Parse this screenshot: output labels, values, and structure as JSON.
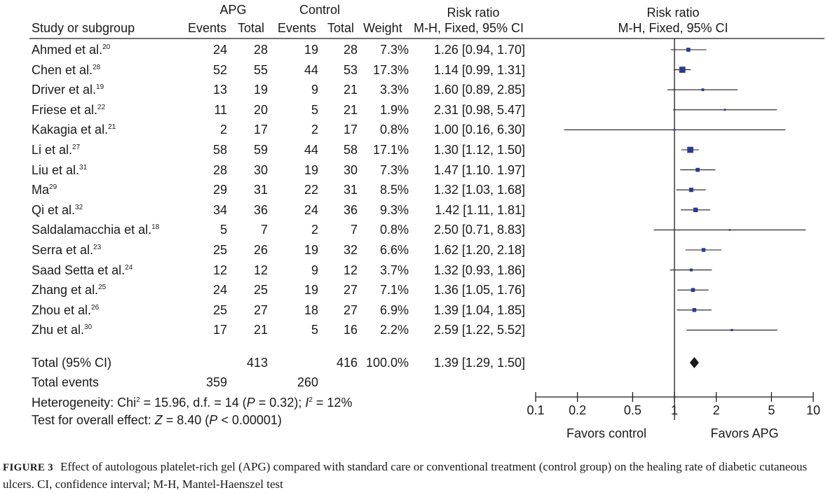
{
  "headers": {
    "apg_group": "APG",
    "control_group": "Control",
    "risk_ratio": "Risk ratio",
    "study": "Study or subgroup",
    "events": "Events",
    "total": "Total",
    "weight": "Weight",
    "method": "M-H, Fixed, 95% CI",
    "plot_title": "Risk ratio",
    "plot_method": "M-H, Fixed, 95% CI"
  },
  "studies": [
    {
      "name": "Ahmed et al.",
      "ref": "20",
      "apg_events": "24",
      "apg_total": "28",
      "ctrl_events": "19",
      "ctrl_total": "28",
      "weight": "7.3%",
      "ci_text": "1.26 [0.94, 1.70]"
    },
    {
      "name": "Chen et al.",
      "ref": "28",
      "apg_events": "52",
      "apg_total": "55",
      "ctrl_events": "44",
      "ctrl_total": "53",
      "weight": "17.3%",
      "ci_text": "1.14 [0.99, 1.31]"
    },
    {
      "name": "Driver et al.",
      "ref": "19",
      "apg_events": "13",
      "apg_total": "19",
      "ctrl_events": "9",
      "ctrl_total": "21",
      "weight": "3.3%",
      "ci_text": "1.60 [0.89, 2.85]"
    },
    {
      "name": "Friese et al.",
      "ref": "22",
      "apg_events": "11",
      "apg_total": "20",
      "ctrl_events": "5",
      "ctrl_total": "21",
      "weight": "1.9%",
      "ci_text": "2.31 [0.98, 5.47]"
    },
    {
      "name": "Kakagia et al.",
      "ref": "21",
      "apg_events": "2",
      "apg_total": "17",
      "ctrl_events": "2",
      "ctrl_total": "17",
      "weight": "0.8%",
      "ci_text": "1.00 [0.16, 6.30]"
    },
    {
      "name": "Li et al.",
      "ref": "27",
      "apg_events": "58",
      "apg_total": "59",
      "ctrl_events": "44",
      "ctrl_total": "58",
      "weight": "17.1%",
      "ci_text": "1.30 [1.12, 1.50]"
    },
    {
      "name": "Liu et al.",
      "ref": "31",
      "apg_events": "28",
      "apg_total": "30",
      "ctrl_events": "19",
      "ctrl_total": "30",
      "weight": "7.3%",
      "ci_text": "1.47 [1.10. 1.97]"
    },
    {
      "name": "Ma",
      "ref": "29",
      "apg_events": "29",
      "apg_total": "31",
      "ctrl_events": "22",
      "ctrl_total": "31",
      "weight": "8.5%",
      "ci_text": "1.32 [1.03, 1.68]"
    },
    {
      "name": "Qi et al.",
      "ref": "32",
      "apg_events": "34",
      "apg_total": "36",
      "ctrl_events": "24",
      "ctrl_total": "36",
      "weight": "9.3%",
      "ci_text": "1.42 [1.11, 1.81]"
    },
    {
      "name": "Saldalamacchia et al.",
      "ref": "18",
      "apg_events": "5",
      "apg_total": "7",
      "ctrl_events": "2",
      "ctrl_total": "7",
      "weight": "0.8%",
      "ci_text": "2.50 [0.71, 8.83]"
    },
    {
      "name": "Serra et al.",
      "ref": "23",
      "apg_events": "25",
      "apg_total": "26",
      "ctrl_events": "19",
      "ctrl_total": "32",
      "weight": "6.6%",
      "ci_text": "1.62 [1.20, 2.18]"
    },
    {
      "name": "Saad Setta et al.",
      "ref": "24",
      "apg_events": "12",
      "apg_total": "12",
      "ctrl_events": "9",
      "ctrl_total": "12",
      "weight": "3.7%",
      "ci_text": "1.32 [0.93, 1.86]"
    },
    {
      "name": "Zhang et al.",
      "ref": "25",
      "apg_events": "24",
      "apg_total": "25",
      "ctrl_events": "19",
      "ctrl_total": "27",
      "weight": "7.1%",
      "ci_text": "1.36 [1.05, 1.76]"
    },
    {
      "name": "Zhou et al.",
      "ref": "26",
      "apg_events": "25",
      "apg_total": "27",
      "ctrl_events": "18",
      "ctrl_total": "27",
      "weight": "6.9%",
      "ci_text": "1.39 [1.04, 1.85]"
    },
    {
      "name": "Zhu et al.",
      "ref": "30",
      "apg_events": "17",
      "apg_total": "21",
      "ctrl_events": "5",
      "ctrl_total": "16",
      "weight": "2.2%",
      "ci_text": "2.59 [1.22, 5.52]"
    }
  ],
  "total_row": {
    "label": "Total (95% CI)",
    "apg_total": "413",
    "ctrl_total": "416",
    "weight": "100.0%",
    "ci_text": "1.39 [1.29, 1.50]"
  },
  "events_row": {
    "label": "Total events",
    "apg_events": "359",
    "ctrl_events": "260"
  },
  "heterogeneity": {
    "prefix": "Heterogeneity: Chi",
    "sup": "2",
    "mid": " = 15.96, d.f. = 14 (",
    "p": "P",
    "p_rest": " = 0.32); ",
    "i": "I",
    "i_sup": "2",
    "i_rest": " = 12%"
  },
  "overall_effect": {
    "prefix": "Test for overall effect: ",
    "z": "Z",
    "z_rest": " = 8.40 (",
    "p": "P",
    "p_rest": " < 0.00001)"
  },
  "axis": {
    "favors_left": "Favors control",
    "favors_right": "Favors APG"
  },
  "caption": {
    "label": "FIGURE 3",
    "text": "Effect of autologous platelet-rich gel (APG) compared with standard care or conventional treatment (control group) on the healing rate of diabetic cutaneous ulcers. CI, confidence interval; M-H, Mantel-Haenszel test"
  },
  "colors": {
    "marker": "#2b3990",
    "line": "#1a1a1a",
    "diamond": "#1a1a1a"
  },
  "chart_data": {
    "type": "forest",
    "title": "Risk ratio",
    "subtitle": "M-H, Fixed, 95% CI",
    "x_scale": "log",
    "xlim": [
      0.1,
      10
    ],
    "ticks": [
      0.1,
      0.2,
      0.5,
      1,
      2,
      5,
      10
    ],
    "tick_labels": [
      "0.1",
      "0.2",
      "0.5",
      "1",
      "2",
      "5",
      "10"
    ],
    "reference_line": 1,
    "points": [
      {
        "study": "Ahmed et al.",
        "rr": 1.26,
        "lo": 0.94,
        "hi": 1.7,
        "weight": 7.3
      },
      {
        "study": "Chen et al.",
        "rr": 1.14,
        "lo": 0.99,
        "hi": 1.31,
        "weight": 17.3
      },
      {
        "study": "Driver et al.",
        "rr": 1.6,
        "lo": 0.89,
        "hi": 2.85,
        "weight": 3.3
      },
      {
        "study": "Friese et al.",
        "rr": 2.31,
        "lo": 0.98,
        "hi": 5.47,
        "weight": 1.9
      },
      {
        "study": "Kakagia et al.",
        "rr": 1.0,
        "lo": 0.16,
        "hi": 6.3,
        "weight": 0.8
      },
      {
        "study": "Li et al.",
        "rr": 1.3,
        "lo": 1.12,
        "hi": 1.5,
        "weight": 17.1
      },
      {
        "study": "Liu et al.",
        "rr": 1.47,
        "lo": 1.1,
        "hi": 1.97,
        "weight": 7.3
      },
      {
        "study": "Ma",
        "rr": 1.32,
        "lo": 1.03,
        "hi": 1.68,
        "weight": 8.5
      },
      {
        "study": "Qi et al.",
        "rr": 1.42,
        "lo": 1.11,
        "hi": 1.81,
        "weight": 9.3
      },
      {
        "study": "Saldalamacchia et al.",
        "rr": 2.5,
        "lo": 0.71,
        "hi": 8.83,
        "weight": 0.8
      },
      {
        "study": "Serra et al.",
        "rr": 1.62,
        "lo": 1.2,
        "hi": 2.18,
        "weight": 6.6
      },
      {
        "study": "Saad Setta et al.",
        "rr": 1.32,
        "lo": 0.93,
        "hi": 1.86,
        "weight": 3.7
      },
      {
        "study": "Zhang et al.",
        "rr": 1.36,
        "lo": 1.05,
        "hi": 1.76,
        "weight": 7.1
      },
      {
        "study": "Zhou et al.",
        "rr": 1.39,
        "lo": 1.04,
        "hi": 1.85,
        "weight": 6.9
      },
      {
        "study": "Zhu et al.",
        "rr": 2.59,
        "lo": 1.22,
        "hi": 5.52,
        "weight": 2.2
      }
    ],
    "pooled": {
      "rr": 1.39,
      "lo": 1.29,
      "hi": 1.5,
      "weight": 100.0
    }
  }
}
